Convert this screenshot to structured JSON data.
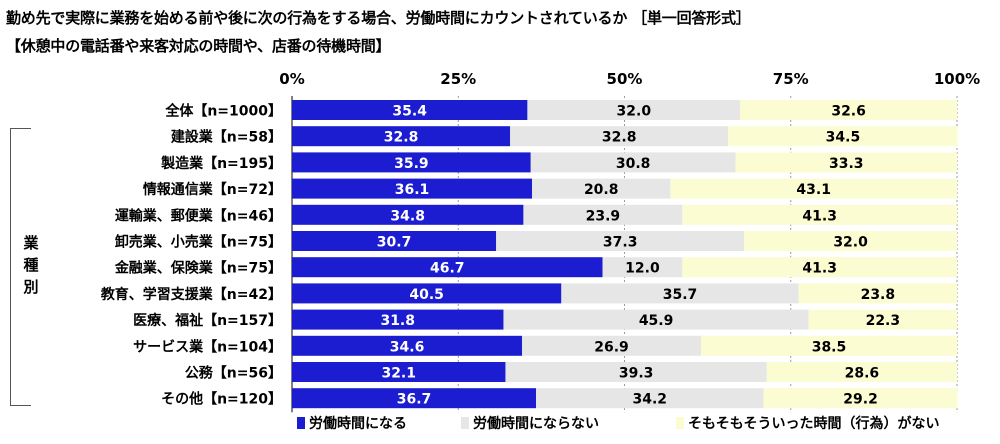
{
  "title": "勤め先で実際に業務を始める前や後に次の行為をする場合、労働時間にカウントされているか ［単一回答形式］",
  "subtitle": "【休憩中の電話番や来客対応の時間や、店番の待機時間】",
  "side_label": [
    "業",
    "種",
    "別"
  ],
  "colors": {
    "series1": "#1c1cd0",
    "series2": "#e6e6e6",
    "series3": "#fcfcd2"
  },
  "chart_data": {
    "type": "bar",
    "orientation": "horizontal",
    "stacked": true,
    "percent": true,
    "xlim": [
      0,
      100
    ],
    "ticks": [
      {
        "value": 0,
        "label": "0%"
      },
      {
        "value": 25,
        "label": "25%"
      },
      {
        "value": 50,
        "label": "50%"
      },
      {
        "value": 75,
        "label": "75%"
      },
      {
        "value": 100,
        "label": "100%"
      }
    ],
    "grid": true,
    "legend_position": "bottom",
    "categories": [
      "全体【n=1000】",
      "建設業【n=58】",
      "製造業【n=195】",
      "情報通信業【n=72】",
      "運輸業、郵便業【n=46】",
      "卸売業、小売業【n=75】",
      "金融業、保険業【n=75】",
      "教育、学習支援業【n=42】",
      "医療、福祉【n=157】",
      "サービス業【n=104】",
      "公務【n=56】",
      "その他【n=120】"
    ],
    "series": [
      {
        "name": "労働時間になる",
        "values": [
          35.4,
          32.8,
          35.9,
          36.1,
          34.8,
          30.7,
          46.7,
          40.5,
          31.8,
          34.6,
          32.1,
          36.7
        ]
      },
      {
        "name": "労働時間にならない",
        "values": [
          32.0,
          32.8,
          30.8,
          20.8,
          23.9,
          37.3,
          12.0,
          35.7,
          45.9,
          26.9,
          39.3,
          34.2
        ]
      },
      {
        "name": "そもそもそういった時間（行為）がない",
        "values": [
          32.6,
          34.5,
          33.3,
          43.1,
          41.3,
          32.0,
          41.3,
          23.8,
          22.3,
          38.5,
          28.6,
          29.2
        ]
      }
    ]
  }
}
